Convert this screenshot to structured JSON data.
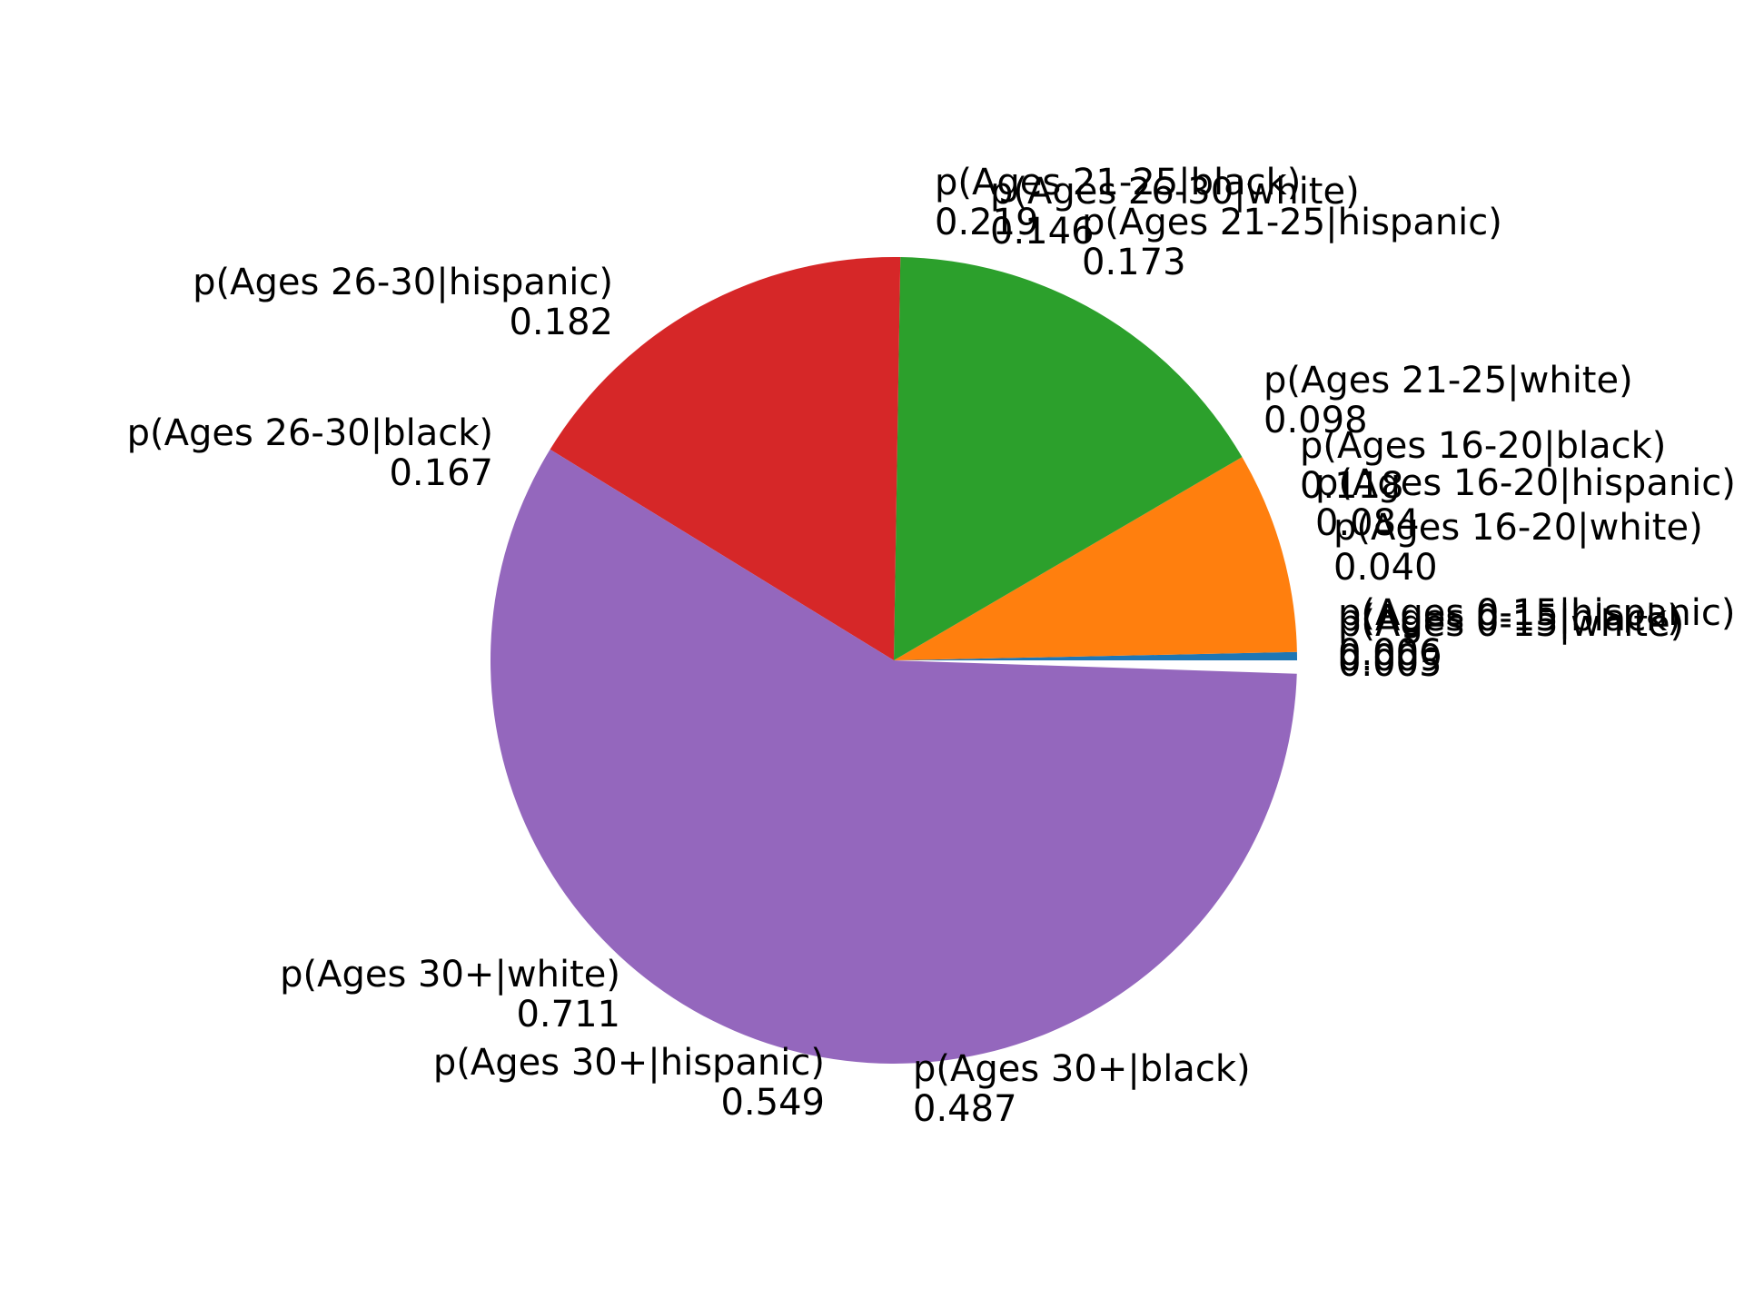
{
  "chart_data": {
    "type": "pie",
    "title": "",
    "slices": [
      {
        "group": "Ages 0-15",
        "color": "#1f77b4",
        "fraction": 0.0033,
        "labels": [
          {
            "text": "p(Ages 0-15|white)",
            "value": "0.005"
          },
          {
            "text": "p(Ages 0-15|black)",
            "value": "0.009"
          },
          {
            "text": "p(Ages 0-15|hispanic)",
            "value": "0.006"
          }
        ]
      },
      {
        "group": "Ages 16-20",
        "color": "#ff7f0e",
        "fraction": 0.0808,
        "labels": [
          {
            "text": "p(Ages 16-20|white)",
            "value": "0.040"
          },
          {
            "text": "p(Ages 16-20|black)",
            "value": "0.118"
          },
          {
            "text": "p(Ages 16-20|hispanic)",
            "value": "0.084"
          }
        ]
      },
      {
        "group": "Ages 21-25",
        "color": "#2ca02c",
        "fraction": 0.1633,
        "labels": [
          {
            "text": "p(Ages 21-25|white)",
            "value": "0.098"
          },
          {
            "text": "p(Ages 21-25|black)",
            "value": "0.219"
          },
          {
            "text": "p(Ages 21-25|hispanic)",
            "value": "0.173"
          }
        ]
      },
      {
        "group": "Ages 26-30",
        "color": "#d62728",
        "fraction": 0.165,
        "labels": [
          {
            "text": "p(Ages 26-30|white)",
            "value": "0.146"
          },
          {
            "text": "p(Ages 26-30|black)",
            "value": "0.167"
          },
          {
            "text": "p(Ages 26-30|hispanic)",
            "value": "0.182"
          }
        ]
      },
      {
        "group": "Ages 30+",
        "color": "#9467bd",
        "fraction": 0.5823,
        "labels": [
          {
            "text": "p(Ages 30+|white)",
            "value": "0.711"
          },
          {
            "text": "p(Ages 30+|black)",
            "value": "0.487"
          },
          {
            "text": "p(Ages 30+|hispanic)",
            "value": "0.549"
          }
        ]
      }
    ]
  }
}
